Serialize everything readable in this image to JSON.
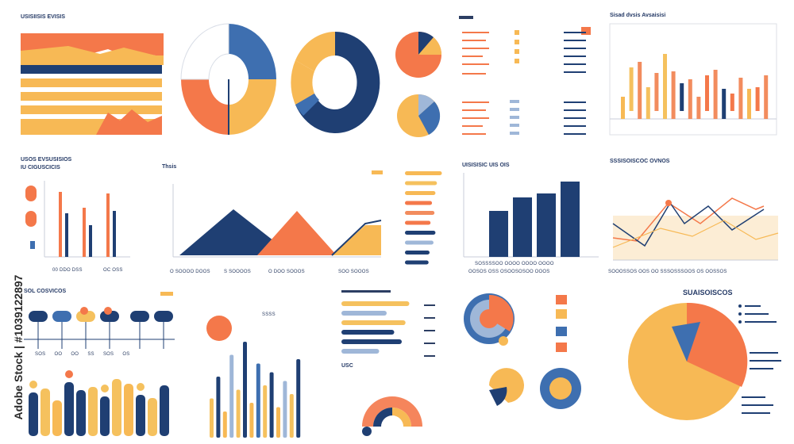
{
  "watermark": {
    "text": "Adobe Stock | #1039122897"
  },
  "colors": {
    "navy": "#1f3f73",
    "blue": "#3e6fb0",
    "lightblue": "#9fb7d8",
    "orange": "#f4784a",
    "coral": "#f28c5e",
    "yellow": "#f7b955",
    "gold": "#f5c15e",
    "grid": "#c9ced8"
  },
  "panels": {
    "p1": {
      "title": "USISIISIS EVISIS"
    },
    "p6": {
      "title": "Sisad dvsis Avsaisisi"
    },
    "p7": {
      "title_line1": "USOS EVSUSISIOS",
      "title_line2": "IU CIGUSCICIS"
    },
    "p8": {
      "title": "Thsis"
    },
    "p10": {
      "title": "UISISISIC UIS OIS"
    },
    "p11": {
      "title": "SSSISOISCOC OVNOS"
    },
    "p12": {
      "title": "SOL COSVICOS"
    },
    "p16": {
      "title": "SUAISOISCOS"
    },
    "p14": {
      "title": "USC"
    }
  },
  "chart_data": [
    {
      "type": "bar",
      "orientation": "horizontal",
      "values": [
        0.68,
        1,
        1,
        1,
        1,
        0.75
      ]
    },
    {
      "type": "pie",
      "slices": [
        0.25,
        0.25,
        0.25,
        0.25
      ]
    },
    {
      "type": "pie",
      "slices": [
        0.45,
        0.08,
        0.27,
        0.2
      ]
    },
    {
      "type": "pie",
      "slices": [
        0.35,
        0.65
      ]
    },
    {
      "type": "pie",
      "slices": [
        0.3,
        0.45,
        0.25
      ]
    },
    {
      "type": "bar",
      "values": [
        28,
        55,
        72,
        40,
        48,
        82,
        60,
        35,
        50,
        28,
        45,
        62,
        38,
        22,
        52,
        38,
        30,
        55
      ]
    },
    {
      "type": "bar",
      "values": [
        82,
        55,
        62,
        40,
        80,
        58
      ]
    },
    {
      "type": "area",
      "series": [
        {
          "values": [
            0,
            60,
            0
          ]
        },
        {
          "values": [
            0,
            58,
            0
          ]
        },
        {
          "values": [
            0,
            45,
            40
          ]
        }
      ]
    },
    {
      "type": "bar",
      "orientation": "horizontal",
      "values": [
        75,
        65,
        62,
        55,
        60,
        52,
        62,
        58,
        50,
        48
      ]
    },
    {
      "type": "bar",
      "values": [
        58,
        75,
        80,
        95
      ]
    },
    {
      "type": "line",
      "series": [
        {
          "values": [
            60,
            30,
            38,
            10,
            45,
            20,
            35
          ]
        },
        {
          "values": [
            20,
            35,
            45,
            25,
            40,
            60,
            50
          ]
        }
      ]
    },
    {
      "type": "bar",
      "values": [
        55,
        60,
        45,
        68,
        58,
        62,
        50,
        72,
        66,
        52,
        48,
        64
      ]
    },
    {
      "type": "bar",
      "values": [
        45,
        70,
        30,
        95,
        55,
        110,
        40,
        85,
        60,
        75,
        35,
        65,
        50,
        90
      ]
    },
    {
      "type": "bar",
      "orientation": "horizontal",
      "values": [
        90,
        60,
        85,
        70,
        80,
        50
      ]
    },
    {
      "type": "pie",
      "slices": [
        0.4,
        0.3,
        0.3
      ]
    },
    {
      "type": "pie",
      "slices": [
        0.63,
        0.37
      ]
    }
  ]
}
